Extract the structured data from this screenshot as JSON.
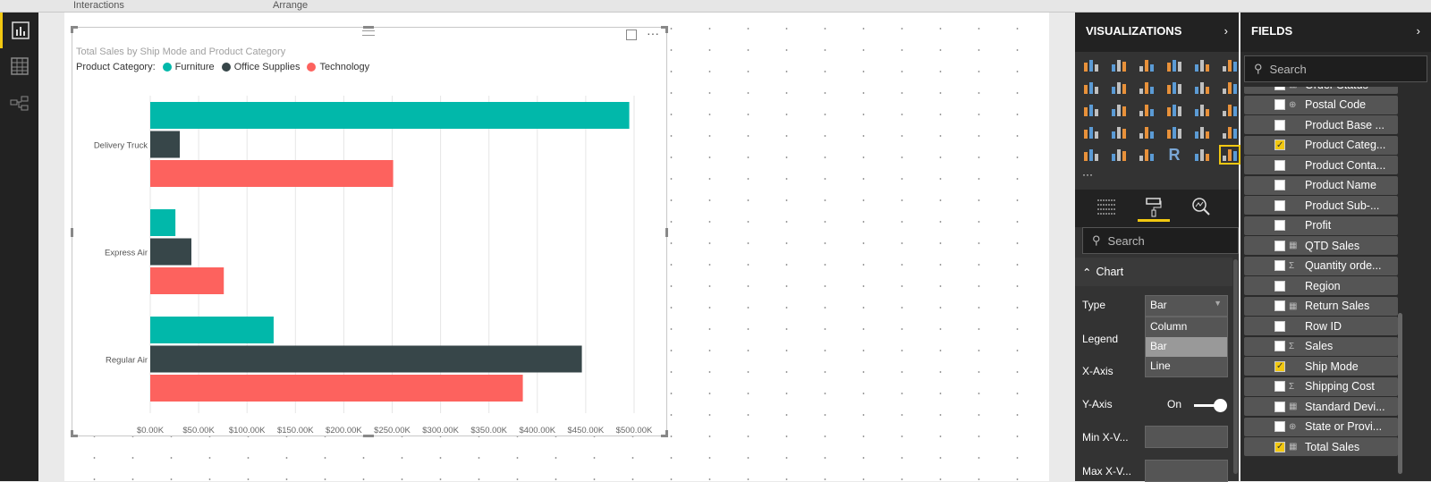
{
  "ribbon": {
    "interactions": "Interactions",
    "arrange": "Arrange"
  },
  "nav": [
    {
      "icon": "report-icon",
      "active": true
    },
    {
      "icon": "data-icon"
    },
    {
      "icon": "relationships-icon"
    }
  ],
  "visual": {
    "title": "Total Sales by Ship Mode and Product Category",
    "legend_label": "Product Category:"
  },
  "chart_data": {
    "type": "bar",
    "orientation": "horizontal",
    "title": "Total Sales by Ship Mode and Product Category",
    "categories": [
      "Delivery Truck",
      "Express Air",
      "Regular Air"
    ],
    "series": [
      {
        "name": "Furniture",
        "color": "#01b8aa",
        "values": [
          495000,
          26000,
          127500
        ]
      },
      {
        "name": "Office Supplies",
        "color": "#374649",
        "values": [
          30500,
          42500,
          446000
        ]
      },
      {
        "name": "Technology",
        "color": "#fd625e",
        "values": [
          251000,
          76000,
          385000
        ]
      }
    ],
    "xticks": [
      "$0.00K",
      "$50.00K",
      "$100.00K",
      "$150.00K",
      "$200.00K",
      "$250.00K",
      "$300.00K",
      "$350.00K",
      "$400.00K",
      "$450.00K",
      "$500.00K"
    ],
    "xlim": [
      0,
      500000
    ],
    "grid": true,
    "legend": "top-left"
  },
  "visualizations": {
    "title": "VISUALIZATIONS",
    "more": "···",
    "search_placeholder": "Search",
    "section": "Chart",
    "type_label": "Type",
    "type_value": "Bar",
    "type_options": [
      "Column",
      "Bar",
      "Line"
    ],
    "legend_label": "Legend",
    "xaxis_label": "X-Axis",
    "yaxis_label": "Y-Axis",
    "yaxis_value": "On",
    "minx_label": "Min X-V...",
    "maxx_label": "Max X-V..."
  },
  "fields": {
    "title": "FIELDS",
    "search_placeholder": "Search",
    "items": [
      {
        "label": "Order Status",
        "icon": "▦",
        "checked": false
      },
      {
        "label": "Postal Code",
        "icon": "⊕",
        "checked": false
      },
      {
        "label": "Product Base ...",
        "icon": "",
        "checked": false
      },
      {
        "label": "Product Categ...",
        "icon": "",
        "checked": true
      },
      {
        "label": "Product Conta...",
        "icon": "",
        "checked": false
      },
      {
        "label": "Product Name",
        "icon": "",
        "checked": false
      },
      {
        "label": "Product Sub-...",
        "icon": "",
        "checked": false
      },
      {
        "label": "Profit",
        "icon": "",
        "checked": false
      },
      {
        "label": "QTD Sales",
        "icon": "▦",
        "checked": false
      },
      {
        "label": "Quantity orde...",
        "icon": "Σ",
        "checked": false
      },
      {
        "label": "Region",
        "icon": "",
        "checked": false
      },
      {
        "label": "Return Sales",
        "icon": "▦",
        "checked": false
      },
      {
        "label": "Row ID",
        "icon": "",
        "checked": false
      },
      {
        "label": "Sales",
        "icon": "Σ",
        "checked": false
      },
      {
        "label": "Ship Mode",
        "icon": "",
        "checked": true
      },
      {
        "label": "Shipping Cost",
        "icon": "Σ",
        "checked": false
      },
      {
        "label": "Standard Devi...",
        "icon": "▦",
        "checked": false
      },
      {
        "label": "State or Provi...",
        "icon": "⊕",
        "checked": false
      },
      {
        "label": "Total Sales",
        "icon": "▦",
        "checked": true
      }
    ]
  }
}
